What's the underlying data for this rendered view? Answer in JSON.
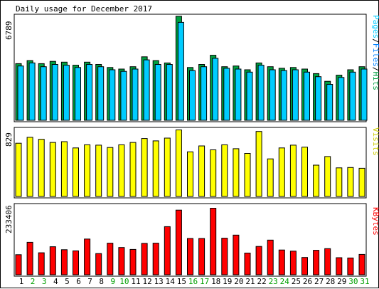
{
  "title": "Daily usage for December 2017",
  "colors": {
    "pages": "#00CCFF",
    "files": "#0080FF",
    "hits": "#00A040",
    "visits": "#FFFF00",
    "kbytes": "#FF0000",
    "sep": "#000000",
    "weekend_day": "#00A000",
    "weekday": "#000000"
  },
  "chart_data": [
    {
      "type": "bar",
      "name": "hits-files-pages",
      "ylabel_max": "6789",
      "legend": [
        "Pages",
        "/",
        "Files",
        "/",
        "Hits"
      ],
      "categories": [
        "1",
        "2",
        "3",
        "4",
        "5",
        "6",
        "7",
        "8",
        "9",
        "10",
        "11",
        "12",
        "13",
        "14",
        "15",
        "16",
        "17",
        "18",
        "19",
        "20",
        "21",
        "22",
        "23",
        "24",
        "25",
        "26",
        "27",
        "28",
        "29",
        "30",
        "31"
      ],
      "ymax": 6789,
      "series": [
        {
          "name": "Hits",
          "values": [
            3700,
            3900,
            3700,
            3850,
            3800,
            3600,
            3800,
            3650,
            3450,
            3350,
            3500,
            4150,
            3900,
            3750,
            6800,
            3450,
            3650,
            4250,
            3500,
            3550,
            3300,
            3750,
            3500,
            3400,
            3450,
            3350,
            3050,
            2550,
            2950,
            3300,
            3500
          ]
        },
        {
          "name": "Files",
          "values": [
            3550,
            3750,
            3500,
            3650,
            3600,
            3450,
            3650,
            3500,
            3300,
            3200,
            3350,
            3950,
            3650,
            3650,
            6400,
            3250,
            3500,
            4050,
            3400,
            3350,
            3150,
            3600,
            3300,
            3250,
            3300,
            3150,
            2850,
            2350,
            2800,
            3150,
            3350
          ]
        },
        {
          "name": "Pages",
          "values": [
            3550,
            3750,
            3500,
            3650,
            3600,
            3450,
            3650,
            3500,
            3300,
            3200,
            3350,
            3950,
            3650,
            3650,
            6400,
            3250,
            3500,
            4050,
            3400,
            3350,
            3150,
            3600,
            3300,
            3250,
            3300,
            3150,
            2850,
            2350,
            2800,
            3150,
            3350
          ]
        }
      ]
    },
    {
      "type": "bar",
      "name": "visits",
      "ylabel_max": "829",
      "legend": [
        "Visits"
      ],
      "ymax": 829,
      "series": [
        {
          "name": "Visits",
          "values": [
            680,
            755,
            730,
            690,
            700,
            620,
            660,
            655,
            625,
            660,
            690,
            740,
            710,
            745,
            850,
            570,
            645,
            595,
            660,
            610,
            550,
            830,
            480,
            620,
            655,
            630,
            400,
            510,
            365,
            370,
            360
          ]
        }
      ]
    },
    {
      "type": "bar",
      "name": "kbytes",
      "ylabel_max": "233406",
      "legend": [
        "KBytes"
      ],
      "ymax": 233406,
      "series": [
        {
          "name": "KBytes",
          "values": [
            73000,
            118000,
            80000,
            102000,
            91000,
            87000,
            130000,
            77000,
            115000,
            99000,
            92000,
            114000,
            115000,
            175000,
            235000,
            132000,
            132000,
            242000,
            133000,
            144000,
            79000,
            103000,
            126000,
            90000,
            86000,
            63000,
            89000,
            95000,
            62000,
            61000,
            74000
          ]
        }
      ]
    }
  ],
  "day_labels": [
    "1",
    "2",
    "3",
    "4",
    "5",
    "6",
    "7",
    "8",
    "9",
    "10",
    "11",
    "12",
    "13",
    "14",
    "15",
    "16",
    "17",
    "18",
    "19",
    "20",
    "21",
    "22",
    "23",
    "24",
    "25",
    "26",
    "27",
    "28",
    "29",
    "30",
    "31"
  ],
  "weekend_days": [
    2,
    3,
    9,
    10,
    16,
    17,
    23,
    24,
    30,
    31
  ]
}
